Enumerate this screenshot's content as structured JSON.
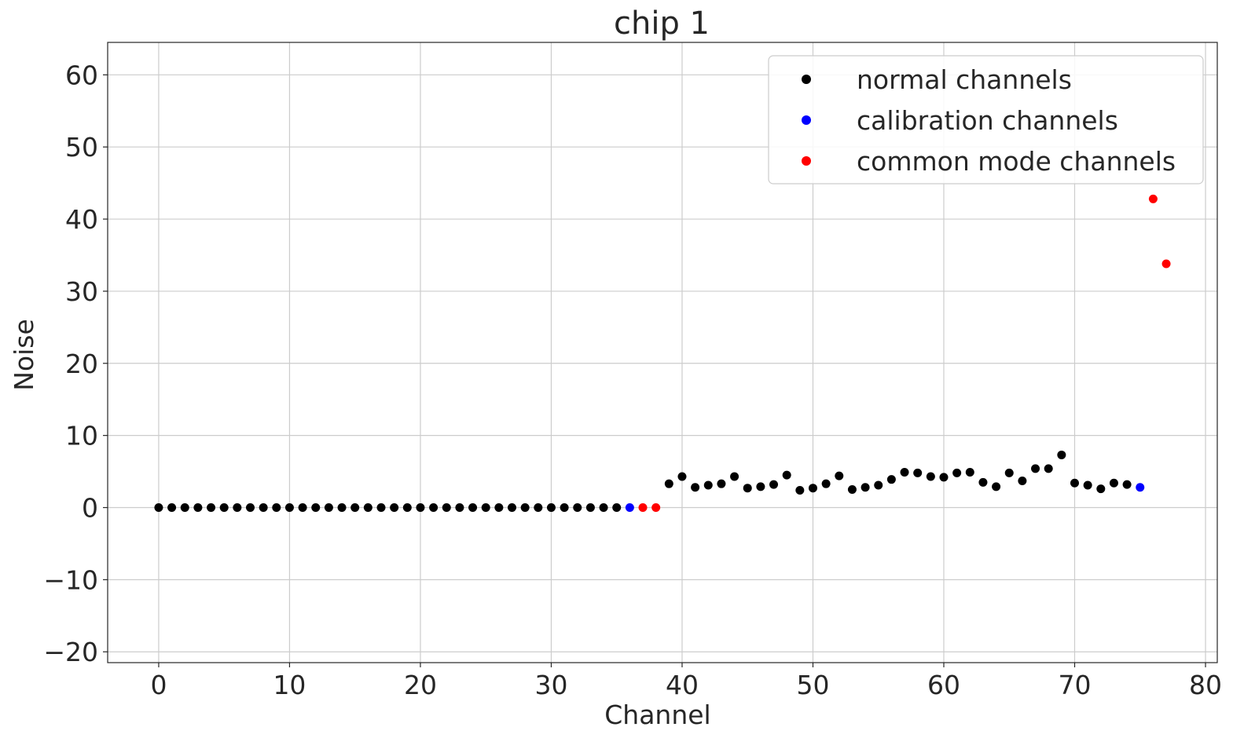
{
  "chart_data": {
    "type": "scatter",
    "title": "chip 1",
    "xlabel": "Channel",
    "ylabel": "Noise",
    "xlim": [
      -3.9,
      80.9
    ],
    "ylim": [
      -21.5,
      64.5
    ],
    "xticks": [
      0,
      10,
      20,
      30,
      40,
      50,
      60,
      70,
      80
    ],
    "yticks": [
      -20,
      -10,
      0,
      10,
      20,
      30,
      40,
      50,
      60
    ],
    "grid": true,
    "legend_position": "top-right",
    "series": [
      {
        "name": "normal channels",
        "color": "#000000",
        "x": [
          0,
          1,
          2,
          3,
          4,
          5,
          6,
          7,
          8,
          9,
          10,
          11,
          12,
          13,
          14,
          15,
          16,
          17,
          18,
          19,
          20,
          21,
          22,
          23,
          24,
          25,
          26,
          27,
          28,
          29,
          30,
          31,
          32,
          33,
          34,
          35,
          39,
          40,
          41,
          42,
          43,
          44,
          45,
          46,
          47,
          48,
          49,
          50,
          51,
          52,
          53,
          54,
          55,
          56,
          57,
          58,
          59,
          60,
          61,
          62,
          63,
          64,
          65,
          66,
          67,
          68,
          69,
          70,
          71,
          72,
          73,
          74
        ],
        "y": [
          0,
          0,
          0,
          0,
          0,
          0,
          0,
          0,
          0,
          0,
          0,
          0,
          0,
          0,
          0,
          0,
          0,
          0,
          0,
          0,
          0,
          0,
          0,
          0,
          0,
          0,
          0,
          0,
          0,
          0,
          0,
          0,
          0,
          0,
          0,
          0,
          3.3,
          4.3,
          2.8,
          3.1,
          3.3,
          4.3,
          2.7,
          2.9,
          3.2,
          4.5,
          2.4,
          2.7,
          3.3,
          4.4,
          2.5,
          2.8,
          3.1,
          3.9,
          4.9,
          4.8,
          4.3,
          4.2,
          4.8,
          4.9,
          3.5,
          2.9,
          4.8,
          3.7,
          5.4,
          5.4,
          7.3,
          3.4,
          3.1,
          2.6,
          3.4,
          3.2
        ]
      },
      {
        "name": "calibration channels",
        "color": "#0000ff",
        "x": [
          36,
          75
        ],
        "y": [
          0,
          2.8
        ]
      },
      {
        "name": "common mode channels",
        "color": "#ff0000",
        "x": [
          37,
          38,
          76,
          77
        ],
        "y": [
          0,
          0,
          42.8,
          33.8
        ]
      }
    ]
  }
}
